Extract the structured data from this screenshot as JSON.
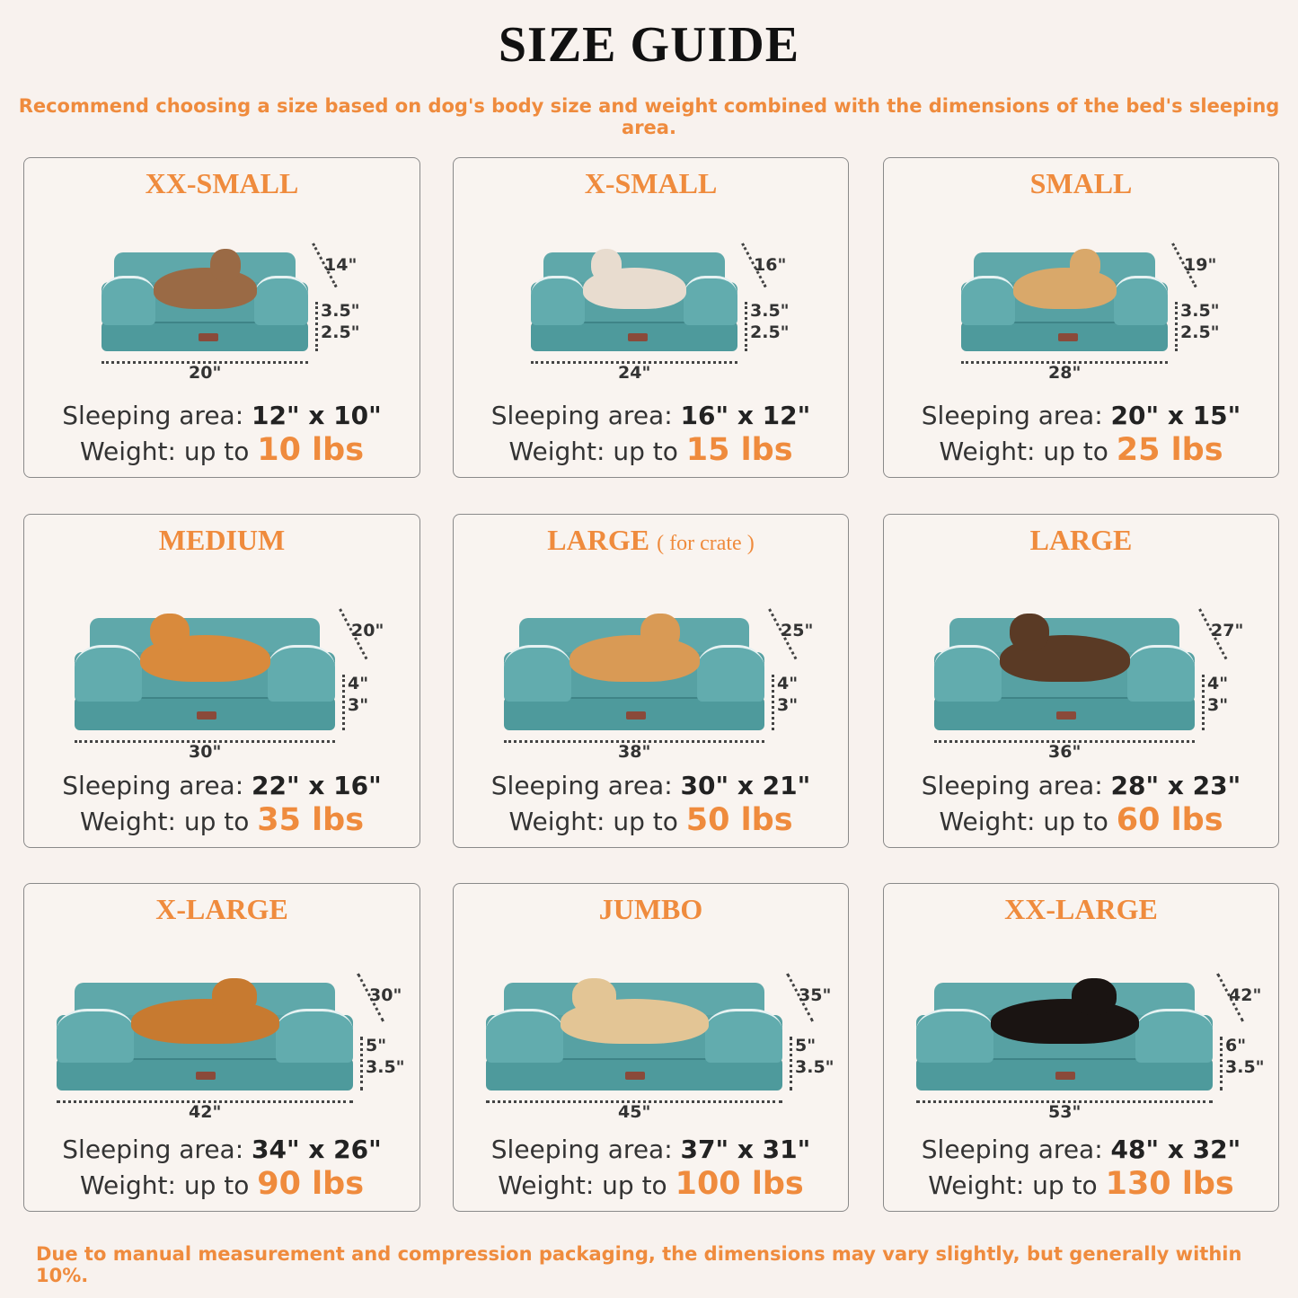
{
  "title": "SIZE GUIDE",
  "subtitle": "Recommend choosing a size based on dog's body size and weight combined with the dimensions of the bed's sleeping area.",
  "footer": "Due to manual measurement and compression packaging, the dimensions may vary slightly, but generally within 10%.",
  "labels": {
    "sleeping": "Sleeping area:",
    "weight": "Weight:  up to"
  },
  "colors": {
    "accent": "#ef8b3d",
    "bed": "#57a1a3",
    "background": "#f8f2ee"
  },
  "sizes": [
    {
      "name": "XX-SMALL",
      "note": "",
      "pet": "cat",
      "depth": "14\"",
      "h1": "3.5\"",
      "h2": "2.5\"",
      "width": "20\"",
      "sleeping_area": "12\" x 10\"",
      "weight": "10 lbs"
    },
    {
      "name": "X-SMALL",
      "note": "",
      "pet": "small dog",
      "depth": "16\"",
      "h1": "3.5\"",
      "h2": "2.5\"",
      "width": "24\"",
      "sleeping_area": "16\" x 12\"",
      "weight": "15 lbs"
    },
    {
      "name": "SMALL",
      "note": "",
      "pet": "french bulldog",
      "depth": "19\"",
      "h1": "3.5\"",
      "h2": "2.5\"",
      "width": "28\"",
      "sleeping_area": "20\" x 15\"",
      "weight": "25 lbs"
    },
    {
      "name": "MEDIUM",
      "note": "",
      "pet": "corgi",
      "depth": "20\"",
      "h1": "4\"",
      "h2": "3\"",
      "width": "30\"",
      "sleeping_area": "22\" x 16\"",
      "weight": "35 lbs"
    },
    {
      "name": "LARGE",
      "note": "( for crate )",
      "pet": "shiba inu",
      "depth": "25\"",
      "h1": "4\"",
      "h2": "3\"",
      "width": "38\"",
      "sleeping_area": "30\" x 21\"",
      "weight": "50 lbs"
    },
    {
      "name": "LARGE",
      "note": "",
      "pet": "shepherd",
      "depth": "27\"",
      "h1": "4\"",
      "h2": "3\"",
      "width": "36\"",
      "sleeping_area": "28\" x 23\"",
      "weight": "60 lbs"
    },
    {
      "name": "X-LARGE",
      "note": "",
      "pet": "golden retriever",
      "depth": "30\"",
      "h1": "5\"",
      "h2": "3.5\"",
      "width": "42\"",
      "sleeping_area": "34\" x 26\"",
      "weight": "90 lbs"
    },
    {
      "name": "JUMBO",
      "note": "",
      "pet": "labrador",
      "depth": "35\"",
      "h1": "5\"",
      "h2": "3.5\"",
      "width": "45\"",
      "sleeping_area": "37\" x 31\"",
      "weight": "100 lbs"
    },
    {
      "name": "XX-LARGE",
      "note": "",
      "pet": "rottweiler",
      "depth": "42\"",
      "h1": "6\"",
      "h2": "3.5\"",
      "width": "53\"",
      "sleeping_area": "48\" x 32\"",
      "weight": "130 lbs"
    }
  ]
}
